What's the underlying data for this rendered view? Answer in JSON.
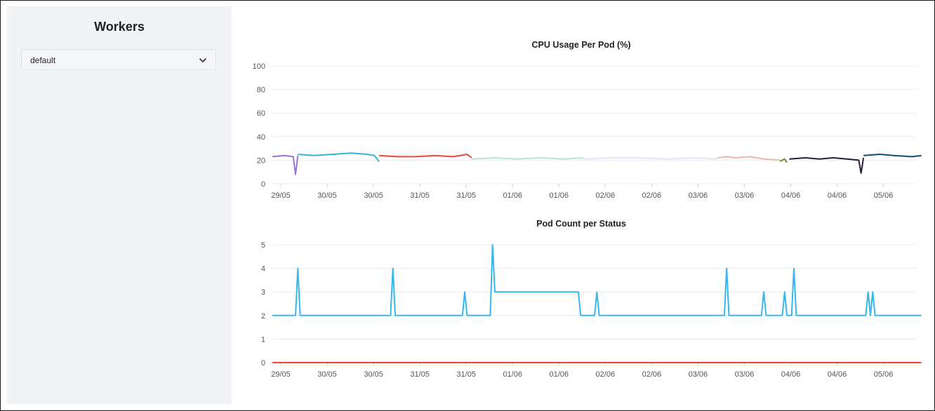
{
  "sidebar": {
    "title": "Workers",
    "select": {
      "value": "default",
      "icon": "chevron-down-icon"
    }
  },
  "colors": {
    "sidebar_bg": "#f1f3f7",
    "grid": "#ececec",
    "axis_text": "#555555",
    "status_series": "#36b7ee",
    "zero_series": "#e8452b"
  },
  "chart_data": [
    {
      "type": "line",
      "title": "CPU Usage Per Pod (%)",
      "xlabel": "",
      "ylabel": "",
      "ylim": [
        0,
        100
      ],
      "yticks": [
        0,
        20,
        40,
        60,
        80,
        100
      ],
      "xticks": [
        "29/05",
        "30/05",
        "30/05",
        "31/05",
        "31/05",
        "01/06",
        "01/06",
        "02/06",
        "02/06",
        "03/06",
        "03/06",
        "04/06",
        "04/06",
        "05/06"
      ],
      "grid": true,
      "legend": "none",
      "series": [
        {
          "color": "#9a73d6",
          "x": [
            0,
            0.25,
            0.45,
            0.5,
            0.55
          ],
          "y": [
            23,
            24,
            23,
            8,
            24
          ]
        },
        {
          "color": "#2fb4e0",
          "x": [
            0.55,
            0.9,
            1.3,
            1.7,
            2.05,
            2.2,
            2.3
          ],
          "y": [
            25,
            24,
            25,
            26,
            25,
            24,
            19
          ]
        },
        {
          "color": "#e84a36",
          "x": [
            2.3,
            2.7,
            3.1,
            3.5,
            3.9,
            4.2,
            4.3
          ],
          "y": [
            24,
            23,
            23,
            24,
            23,
            25,
            22
          ]
        },
        {
          "color": "#b5e6d7",
          "x": [
            4.3,
            4.8,
            5.3,
            5.8,
            6.3,
            6.7
          ],
          "y": [
            21,
            22,
            21,
            22,
            21,
            22
          ]
        },
        {
          "color": "#e7e2f4",
          "x": [
            6.7,
            7.3,
            7.9,
            8.5,
            9.1,
            9.6
          ],
          "y": [
            21,
            22,
            22,
            21,
            22,
            21
          ]
        },
        {
          "color": "#f0b7a8",
          "x": [
            9.6,
            9.8,
            10.0,
            10.3,
            10.6,
            10.95
          ],
          "y": [
            22,
            23,
            22,
            23,
            21,
            20
          ]
        },
        {
          "color": "#6a8f3a",
          "x": [
            10.95,
            11.05,
            11.1
          ],
          "y": [
            19,
            21,
            18
          ]
        },
        {
          "color": "#2a1a3d",
          "x": [
            11.15,
            11.5,
            11.8,
            12.1,
            12.4,
            12.65,
            12.7,
            12.75
          ],
          "y": [
            21,
            22,
            21,
            22,
            21,
            20,
            9,
            22
          ]
        },
        {
          "color": "#0b4f6c",
          "x": [
            12.75,
            13.1,
            13.4,
            13.8,
            14.0
          ],
          "y": [
            24,
            25,
            24,
            23,
            24
          ]
        }
      ]
    },
    {
      "type": "line",
      "title": "Pod Count per Status",
      "xlabel": "",
      "ylabel": "",
      "ylim": [
        0,
        5
      ],
      "yticks": [
        0,
        1,
        2,
        3,
        4,
        5
      ],
      "xticks": [
        "29/05",
        "30/05",
        "30/05",
        "31/05",
        "31/05",
        "01/06",
        "01/06",
        "02/06",
        "02/06",
        "03/06",
        "03/06",
        "04/06",
        "04/06",
        "05/06"
      ],
      "grid": true,
      "legend": "none",
      "series": [
        {
          "color": "#36b7ee",
          "x": [
            0,
            0.5,
            0.55,
            0.6,
            2.55,
            2.6,
            2.65,
            4.1,
            4.15,
            4.2,
            4.7,
            4.75,
            4.8,
            4.85,
            6.6,
            6.65,
            6.95,
            7.0,
            7.05,
            9.75,
            9.8,
            9.85,
            10.55,
            10.6,
            10.65,
            11.0,
            11.05,
            11.1,
            11.2,
            11.25,
            11.3,
            12.8,
            12.85,
            12.9,
            12.95,
            13.0,
            14.0
          ],
          "y": [
            2,
            2,
            4,
            2,
            2,
            4,
            2,
            2,
            3,
            2,
            2,
            5,
            3,
            3,
            3,
            2,
            2,
            3,
            2,
            2,
            4,
            2,
            2,
            3,
            2,
            2,
            3,
            2,
            2,
            4,
            2,
            2,
            3,
            2,
            3,
            2,
            2
          ]
        },
        {
          "color": "#e8452b",
          "x": [
            0,
            14.0
          ],
          "y": [
            0,
            0
          ]
        }
      ]
    }
  ]
}
